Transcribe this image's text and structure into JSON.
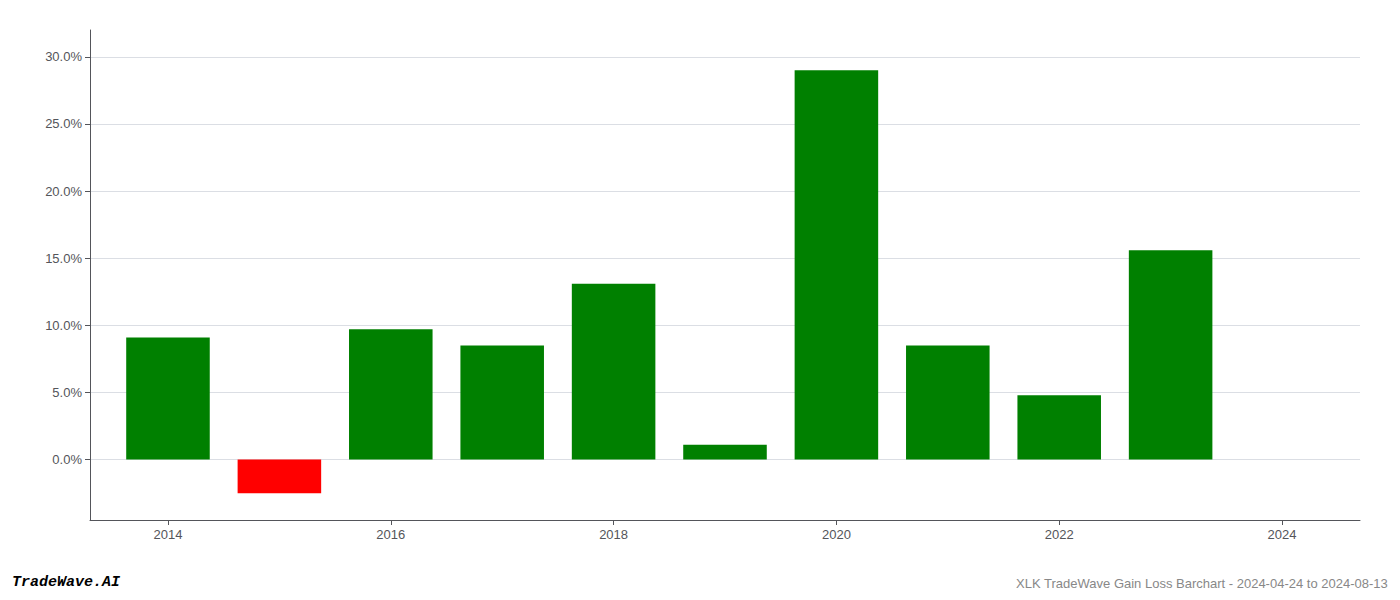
{
  "chart_data": {
    "type": "bar",
    "x": [
      2014,
      2015,
      2016,
      2017,
      2018,
      2019,
      2020,
      2021,
      2022,
      2023
    ],
    "values": [
      0.091,
      -0.025,
      0.097,
      0.085,
      0.131,
      0.011,
      0.29,
      0.085,
      0.048,
      0.156
    ],
    "colors": [
      "#008000",
      "#ff0000",
      "#008000",
      "#008000",
      "#008000",
      "#008000",
      "#008000",
      "#008000",
      "#008000",
      "#008000"
    ],
    "xlim": [
      2013.3,
      2024.7
    ],
    "xticks": [
      2014,
      2016,
      2018,
      2020,
      2022,
      2024
    ],
    "ylim": [
      -0.045,
      0.32
    ],
    "yticks": [
      {
        "value": 0.0,
        "label": "0.0%"
      },
      {
        "value": 0.05,
        "label": "5.0%"
      },
      {
        "value": 0.1,
        "label": "10.0%"
      },
      {
        "value": 0.15,
        "label": "15.0%"
      },
      {
        "value": 0.2,
        "label": "20.0%"
      },
      {
        "value": 0.25,
        "label": "25.0%"
      },
      {
        "value": 0.3,
        "label": "30.0%"
      }
    ],
    "grid": true,
    "annotations": [
      "TradeWave.AI",
      "XLK TradeWave Gain Loss Barchart - 2024-04-24 to 2024-08-13"
    ]
  }
}
